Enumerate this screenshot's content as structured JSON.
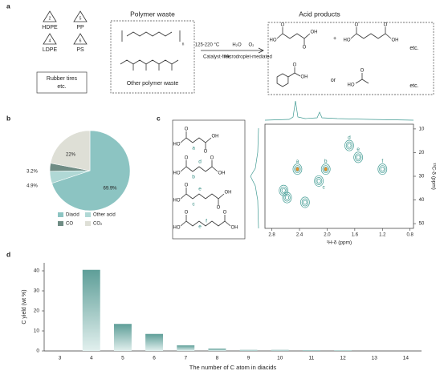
{
  "panel_labels": [
    "a",
    "b",
    "c",
    "d"
  ],
  "scheme": {
    "plastics": [
      "HDPE",
      "PP",
      "LDPE",
      "PS"
    ],
    "recycle_codes": [
      "2",
      "5",
      "4",
      "6"
    ],
    "other_waste": [
      "Rubber tires",
      "etc."
    ],
    "polymer_title": "Polymer waste",
    "repeat_subscript": "n",
    "other_polymer": "Other polymer waste",
    "conditions": [
      "125-220 °C",
      "H₂O",
      "O₂",
      "Catalyst-free",
      "Microdroplet-mediated"
    ],
    "acid_title": "Acid products",
    "acid_atoms": [
      [
        "O",
        "HO",
        "OH",
        "O"
      ],
      [
        "O",
        "HO",
        "OH",
        "O"
      ],
      [
        "O",
        "OH"
      ],
      [
        "O",
        "HO"
      ]
    ],
    "connectors": [
      "+",
      "etc.",
      "or",
      "etc."
    ]
  },
  "c_structures": [
    {
      "atoms": [
        "O",
        "HO",
        "OH",
        "O"
      ],
      "sites": [
        "a"
      ]
    },
    {
      "atoms": [
        "O",
        "HO",
        "OH",
        "O"
      ],
      "sites": [
        "b",
        "d"
      ]
    },
    {
      "atoms": [
        "O",
        "HO",
        "OH",
        "O"
      ],
      "sites": [
        "c",
        "e"
      ]
    },
    {
      "atoms": [
        "O",
        "HO",
        "OH",
        "O"
      ],
      "sites": [
        "e",
        "f"
      ]
    }
  ],
  "chart_data": [
    {
      "type": "pie",
      "categories": [
        "Diacid",
        "Other acid",
        "CO",
        "CO₂"
      ],
      "values": [
        69.9,
        4.9,
        3.2,
        22
      ],
      "value_labels": [
        "69.9%",
        "4.9%",
        "3.2%",
        "22%"
      ],
      "colors": [
        "#8cc4c2",
        "#b0d8d5",
        "#6f8c84",
        "#dedfd6"
      ]
    },
    {
      "type": "contour",
      "x_label": "¹H-δ (ppm)",
      "y_label": "¹³C-δ (ppm)",
      "xlim": [
        2.9,
        0.75
      ],
      "ylim": [
        8,
        52
      ],
      "xticks": [
        2.8,
        2.4,
        {
          "value": 2,
          "label": "2.0"
        },
        1.6,
        1.2,
        0.8
      ],
      "yticks": [
        10,
        20,
        30,
        40,
        50
      ],
      "peak_labels": [
        "a",
        "b",
        "c",
        "d",
        "e",
        "f",
        null,
        null,
        null
      ],
      "x": [
        2.43,
        2.02,
        2.12,
        1.68,
        1.55,
        1.2,
        2.63,
        2.58,
        2.32
      ],
      "y": [
        27,
        27,
        32,
        17,
        22,
        27,
        36,
        39,
        41
      ],
      "color": "#3f9a92",
      "core_color": "#e8902a",
      "cores": [
        true,
        true,
        false,
        false,
        false,
        false,
        false,
        false,
        false
      ]
    },
    {
      "type": "bar",
      "x_label": "The number of C atom in diacids",
      "y_label": "C yield (wt %)",
      "categories": [
        "3",
        "4",
        "5",
        "6",
        "7",
        "8",
        "9",
        "10",
        "11",
        "12",
        "13",
        "14"
      ],
      "values": [
        0,
        40.5,
        13.5,
        8.5,
        2.8,
        1.2,
        0.5,
        0.5,
        0.4,
        0.3,
        0,
        0
      ],
      "ylim": [
        0,
        44
      ],
      "yticks": [
        0,
        10,
        20,
        30,
        40
      ],
      "color": "#5e9e98"
    }
  ]
}
